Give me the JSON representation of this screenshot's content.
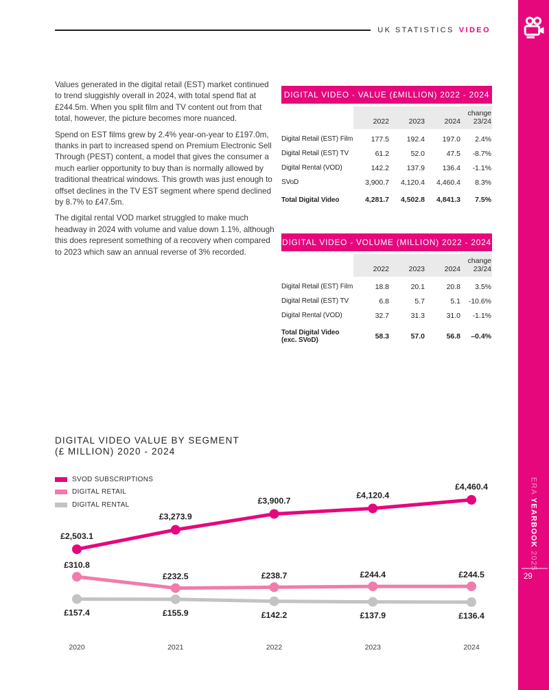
{
  "colors": {
    "accent": "#E6077D",
    "retail_pink": "#F07BAC",
    "rental_grey": "#C3C3C3",
    "ink": "#231F20",
    "table_head_bg": "#EAEAEA"
  },
  "header": {
    "label": "UK STATISTICS",
    "accent": "VIDEO"
  },
  "sidebar": {
    "icon": "video-camera-icon",
    "brand_pre": "ERA ",
    "brand_bold": "YEARBOOK",
    "brand_post": " 2025",
    "page_number": "29"
  },
  "article": {
    "paragraphs": [
      "Values generated in the digital retail (EST) market continued to trend sluggishly overall in 2024, with total spend flat at £244.5m. When you split film and TV content out from that total, however, the picture becomes more nuanced.",
      "Spend on EST films grew by 2.4% year-on-year to £197.0m, thanks in part to increased spend on Premium Electronic Sell Through (PEST) content, a model that gives the consumer a much earlier opportunity to buy than is normally allowed by traditional theatrical windows. This growth was just enough to offset declines in the TV EST segment where spend declined by 8.7% to £47.5m.",
      "The digital rental VOD market struggled to make much headway in 2024 with volume and value down 1.1%, although this does represent something of a recovery when compared to 2023 which saw an annual reverse of 3% recorded."
    ]
  },
  "tables": [
    {
      "title": "DIGITAL VIDEO - VALUE (£MILLION) 2022 - 2024",
      "columns": [
        "2022",
        "2023",
        "2024",
        "change\n23/24"
      ],
      "rows": [
        {
          "label": "Digital Retail (EST) Film",
          "values": [
            "177.5",
            "192.4",
            "197.0",
            "2.4%"
          ]
        },
        {
          "label": "Digital Retail (EST) TV",
          "values": [
            "61.2",
            "52.0",
            "47.5",
            "-8.7%"
          ]
        },
        {
          "label": "Digital Rental (VOD)",
          "values": [
            "142.2",
            "137.9",
            "136.4",
            "-1.1%"
          ]
        },
        {
          "label": "SVoD",
          "values": [
            "3,900.7",
            "4,120.4",
            "4,460.4",
            "8.3%"
          ]
        }
      ],
      "total": {
        "label": "Total Digital Video",
        "values": [
          "4,281.7",
          "4,502.8",
          "4,841.3",
          "7.5%"
        ]
      }
    },
    {
      "title": "DIGITAL VIDEO - VOLUME (MILLION) 2022 - 2024",
      "columns": [
        "2022",
        "2023",
        "2024",
        "change\n23/24"
      ],
      "rows": [
        {
          "label": "Digital Retail (EST) Film",
          "values": [
            "18.8",
            "20.1",
            "20.8",
            "3.5%"
          ]
        },
        {
          "label": "Digital Retail (EST) TV",
          "values": [
            "6.8",
            "5.7",
            "5.1",
            "-10.6%"
          ]
        },
        {
          "label": "Digital Rental (VOD)",
          "values": [
            "32.7",
            "31.3",
            "31.0",
            "-1.1%"
          ]
        }
      ],
      "total": {
        "label": "Total Digital Video (exc. SVoD)",
        "values": [
          "58.3",
          "57.0",
          "56.8",
          "–0.4%"
        ]
      }
    }
  ],
  "chart": {
    "title1": "DIGITAL VIDEO VALUE BY SEGMENT",
    "title2": "(£ MILLION) 2020 - 2024"
  },
  "chart_data": {
    "type": "line",
    "title": "DIGITAL VIDEO VALUE BY SEGMENT (£ MILLION) 2020 - 2024",
    "categories": [
      "2020",
      "2021",
      "2022",
      "2023",
      "2024"
    ],
    "series": [
      {
        "name": "SVOD SUBSCRIPTIONS",
        "color": "#E6077D",
        "values": [
          2503.1,
          3273.9,
          3900.7,
          4120.4,
          4460.4
        ],
        "labels": [
          "£2,503.1",
          "£3,273.9",
          "£3,900.7",
          "£4,120.4",
          "£4,460.4"
        ]
      },
      {
        "name": "DIGITAL RETAIL",
        "color": "#F07BAC",
        "values": [
          310.8,
          232.5,
          238.7,
          244.4,
          244.5
        ],
        "labels": [
          "£310.8",
          "£232.5",
          "£238.7",
          "£244.4",
          "£244.5"
        ]
      },
      {
        "name": "DIGITAL RENTAL",
        "color": "#C3C3C3",
        "values": [
          157.4,
          155.9,
          142.2,
          137.9,
          136.4
        ],
        "labels": [
          "£157.4",
          "£155.9",
          "£142.2",
          "£137.9",
          "£136.4"
        ]
      }
    ],
    "legend_position": "top-left",
    "grid": false,
    "data_labels": true
  }
}
